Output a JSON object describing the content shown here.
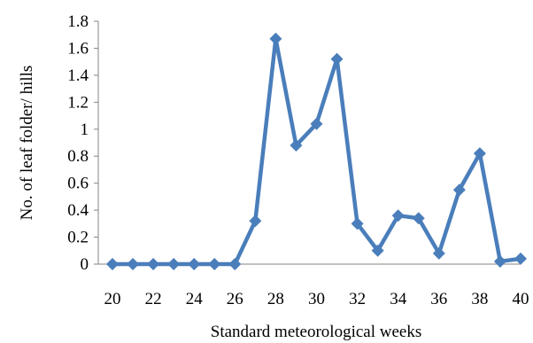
{
  "chart_data": {
    "type": "line",
    "title": "",
    "xlabel": "Standard meteorological weeks",
    "ylabel": "No. of leaf folder/ hills",
    "x": [
      20,
      21,
      22,
      23,
      24,
      25,
      26,
      27,
      28,
      29,
      30,
      31,
      32,
      33,
      34,
      35,
      36,
      37,
      38,
      39,
      40
    ],
    "x_tick_labels": [
      "20",
      "22",
      "24",
      "26",
      "28",
      "30",
      "32",
      "34",
      "36",
      "38",
      "40"
    ],
    "y_tick_labels": [
      "0",
      "0.2",
      "0.4",
      "0.6",
      "0.8",
      "1",
      "1.2",
      "1.4",
      "1.6",
      "1.8"
    ],
    "xlim": [
      20,
      40
    ],
    "ylim": [
      0,
      1.8
    ],
    "grid": false,
    "legend": "none",
    "series": [
      {
        "color": "#4a7ebb",
        "marker": "diamond",
        "values": [
          0,
          0,
          0,
          0,
          0,
          0,
          0,
          0.32,
          1.67,
          0.88,
          1.04,
          1.52,
          0.3,
          0.1,
          0.36,
          0.34,
          0.08,
          0.55,
          0.82,
          0.02,
          0.04
        ]
      }
    ]
  }
}
